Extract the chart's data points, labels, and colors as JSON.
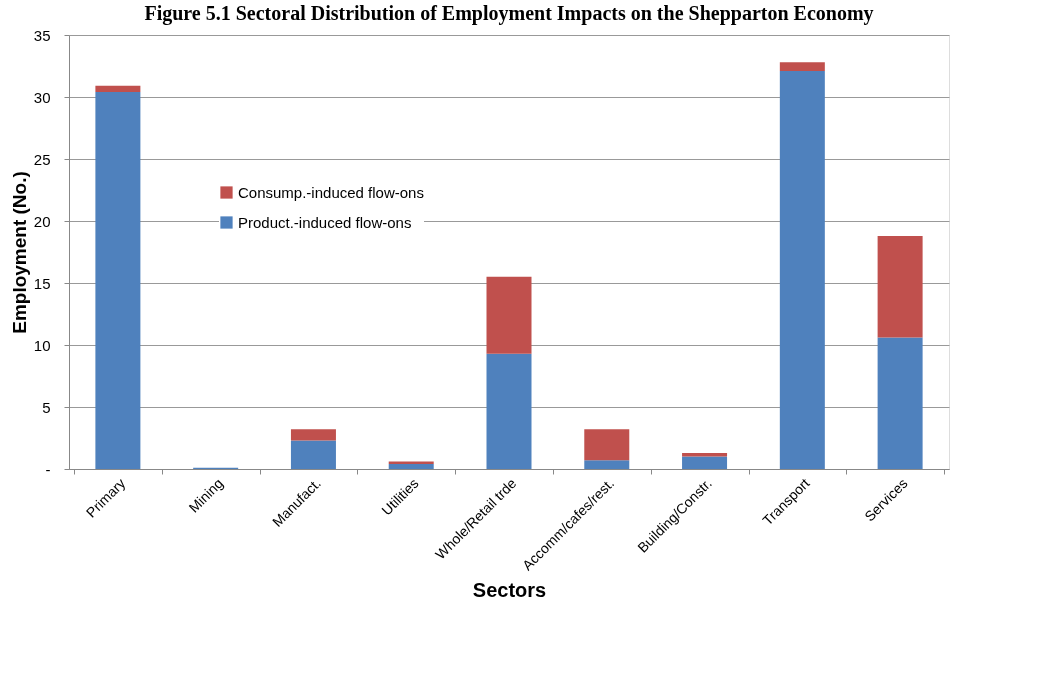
{
  "chart_data": {
    "type": "bar",
    "stacked": true,
    "title": "Figure 5.1 Sectoral Distribution of Employment Impacts on the Shepparton Economy",
    "xlabel": "Sectors",
    "ylabel": "Employment (No.)",
    "categories": [
      "Primary",
      "Mining",
      "Manufact.",
      "Utilities",
      "Whole/Retail trde",
      "Accomm/cafes/rest.",
      "Building/Constr.",
      "Transport",
      "Services"
    ],
    "series": [
      {
        "name": "Product.-induced flow-ons",
        "color": "#4f81bd",
        "values": [
          30.4,
          0.1,
          2.3,
          0.4,
          9.3,
          0.7,
          1.0,
          32.1,
          10.6
        ]
      },
      {
        "name": "Consump.-induced flow-ons",
        "color": "#c0504d",
        "values": [
          0.5,
          null,
          0.9,
          0.2,
          6.2,
          2.5,
          0.3,
          0.7,
          8.2
        ]
      }
    ],
    "ylim": [
      0,
      35
    ],
    "yticks": [
      {
        "value": 0,
        "label": "-"
      },
      5,
      10,
      15,
      20,
      25,
      30,
      35
    ],
    "grid": "y",
    "legend": "top left"
  }
}
